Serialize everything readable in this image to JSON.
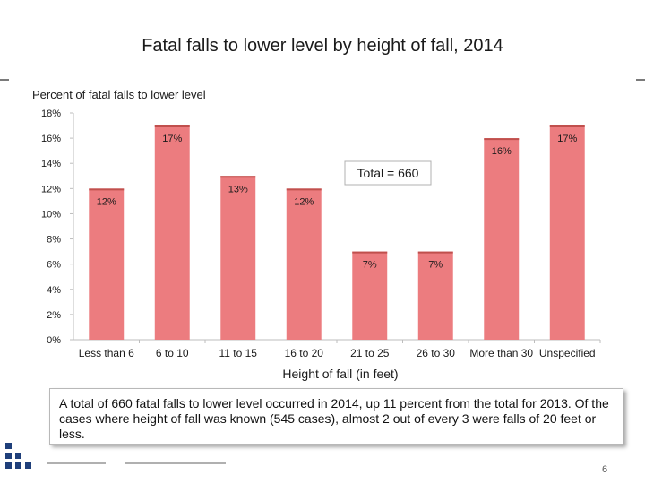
{
  "page": {
    "title": "Fatal falls to lower level by height of fall, 2014",
    "summary": "A total of 660 fatal falls to lower level occurred in 2014, up 11 percent from the total for 2013. Of the cases where height of fall was known (545 cases), almost 2 out of every 3 were falls of 20 feet or less.",
    "slide_number": "6"
  },
  "colors": {
    "bar": "#ec7c7f",
    "bar_edge": "#c0504d",
    "axis": "#bdbdbd",
    "text": "#1a1a1a"
  },
  "chart_data": {
    "type": "bar",
    "title": "Fatal falls to lower level by height of fall, 2014",
    "ylabel": "Percent of fatal falls to lower level",
    "xlabel": "Height of fall (in feet)",
    "categories": [
      "Less than 6",
      "6 to 10",
      "11 to 15",
      "16 to 20",
      "21 to 25",
      "26 to 30",
      "More than 30",
      "Unspecified"
    ],
    "values": [
      12,
      17,
      13,
      12,
      7,
      7,
      16,
      17
    ],
    "value_labels": [
      "12%",
      "17%",
      "13%",
      "12%",
      "7%",
      "7%",
      "16%",
      "17%"
    ],
    "ylim": [
      0,
      18
    ],
    "yticks": [
      "0%",
      "2%",
      "4%",
      "6%",
      "8%",
      "10%",
      "12%",
      "14%",
      "16%",
      "18%"
    ],
    "grid": false,
    "annotation": "Total = 660"
  }
}
